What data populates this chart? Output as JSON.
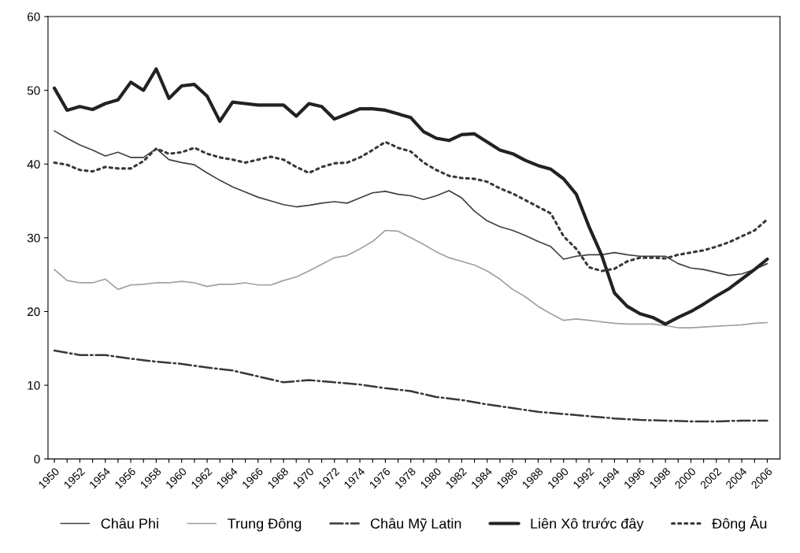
{
  "chart_data": {
    "type": "line",
    "x": [
      1950,
      1951,
      1952,
      1953,
      1954,
      1955,
      1956,
      1957,
      1958,
      1959,
      1960,
      1961,
      1962,
      1963,
      1964,
      1965,
      1966,
      1967,
      1968,
      1969,
      1970,
      1971,
      1972,
      1973,
      1974,
      1975,
      1976,
      1977,
      1978,
      1979,
      1980,
      1981,
      1982,
      1983,
      1984,
      1985,
      1986,
      1987,
      1988,
      1989,
      1990,
      1991,
      1992,
      1993,
      1994,
      1995,
      1996,
      1997,
      1998,
      1999,
      2000,
      2001,
      2002,
      2003,
      2004,
      2005,
      2006
    ],
    "series": [
      {
        "name": "Châu Phi",
        "color": "#404040",
        "line_style": "solid",
        "values": [
          44.5,
          43.5,
          42.6,
          41.9,
          41.1,
          41.6,
          40.9,
          40.9,
          42.1,
          40.6,
          40.2,
          39.9,
          38.8,
          37.8,
          36.9,
          36.2,
          35.5,
          35.0,
          34.5,
          34.2,
          34.4,
          34.7,
          34.9,
          34.7,
          35.4,
          36.1,
          36.3,
          35.9,
          35.7,
          35.2,
          35.7,
          36.4,
          35.4,
          33.6,
          32.3,
          31.5,
          31.0,
          30.3,
          29.5,
          28.8,
          27.1,
          27.5,
          27.7,
          27.7,
          28.0,
          27.7,
          27.5,
          27.5,
          27.5,
          26.5,
          25.9,
          25.7,
          25.3,
          24.9,
          25.1,
          25.7,
          26.5
        ]
      },
      {
        "name": "Trung Đông",
        "color": "#a0a0a0",
        "line_style": "solid",
        "values": [
          25.7,
          24.2,
          23.9,
          23.9,
          24.4,
          23.0,
          23.6,
          23.7,
          23.9,
          23.9,
          24.1,
          23.9,
          23.4,
          23.7,
          23.7,
          23.9,
          23.6,
          23.6,
          24.2,
          24.7,
          25.5,
          26.4,
          27.3,
          27.6,
          28.5,
          29.5,
          31.0,
          30.9,
          30.0,
          29.1,
          28.1,
          27.3,
          26.8,
          26.3,
          25.5,
          24.4,
          23.0,
          22.0,
          20.7,
          19.7,
          18.8,
          19.0,
          18.8,
          18.6,
          18.4,
          18.3,
          18.3,
          18.3,
          18.1,
          17.8,
          17.8,
          17.9,
          18.0,
          18.1,
          18.2,
          18.4,
          18.5
        ]
      },
      {
        "name": "Châu Mỹ Latin",
        "color": "#383838",
        "line_style": "dashdot",
        "x": [
          1950,
          1952,
          1954,
          1956,
          1958,
          1960,
          1962,
          1964,
          1966,
          1968,
          1970,
          1972,
          1974,
          1976,
          1978,
          1980,
          1982,
          1984,
          1986,
          1988,
          1990,
          1992,
          1994,
          1996,
          1998,
          2000,
          2002,
          2004,
          2006
        ],
        "values": [
          14.7,
          14.1,
          14.1,
          13.6,
          13.2,
          12.9,
          12.4,
          12.0,
          11.2,
          10.4,
          10.7,
          10.4,
          10.1,
          9.6,
          9.2,
          8.4,
          8.0,
          7.4,
          6.9,
          6.4,
          6.1,
          5.8,
          5.5,
          5.3,
          5.2,
          5.1,
          5.1,
          5.2,
          5.2
        ]
      },
      {
        "name": "Liên Xô trước đây",
        "color": "#222222",
        "line_style": "solid",
        "values": [
          50.3,
          47.3,
          47.8,
          47.4,
          48.2,
          48.7,
          51.1,
          50.0,
          52.9,
          48.9,
          50.6,
          50.8,
          49.2,
          45.8,
          48.4,
          48.2,
          48.0,
          48.0,
          48.0,
          46.5,
          48.2,
          47.8,
          46.1,
          46.8,
          47.5,
          47.5,
          47.3,
          46.8,
          46.3,
          44.4,
          43.5,
          43.2,
          44.0,
          44.1,
          43.0,
          41.9,
          41.4,
          40.5,
          39.8,
          39.3,
          38.0,
          35.9,
          31.5,
          27.6,
          22.5,
          20.7,
          19.7,
          19.2,
          18.3,
          19.2,
          20.0,
          21.0,
          22.1,
          23.1,
          24.4,
          25.7,
          27.1
        ]
      },
      {
        "name": "Đông Âu",
        "color": "#383838",
        "line_style": "dotted",
        "values": [
          40.2,
          39.9,
          39.2,
          39.0,
          39.6,
          39.4,
          39.4,
          40.4,
          42.1,
          41.4,
          41.6,
          42.2,
          41.4,
          40.9,
          40.6,
          40.2,
          40.6,
          41.0,
          40.6,
          39.6,
          38.8,
          39.6,
          40.1,
          40.2,
          40.9,
          41.9,
          43.0,
          42.2,
          41.7,
          40.2,
          39.2,
          38.4,
          38.1,
          38.0,
          37.6,
          36.7,
          36.0,
          35.1,
          34.2,
          33.3,
          30.2,
          28.5,
          26.0,
          25.5,
          25.8,
          26.8,
          27.3,
          27.3,
          27.2,
          27.7,
          28.0,
          28.3,
          28.8,
          29.4,
          30.2,
          31.0,
          32.5
        ]
      }
    ],
    "xlim": [
      1949.5,
      2007
    ],
    "xticks": [
      1950,
      {
        "value": 1951,
        "label": null
      },
      1952,
      {
        "value": 1953,
        "label": null
      },
      1954,
      {
        "value": 1955,
        "label": null
      },
      1956,
      {
        "value": 1957,
        "label": null
      },
      1958,
      {
        "value": 1959,
        "label": null
      },
      1960,
      {
        "value": 1961,
        "label": null
      },
      1962,
      {
        "value": 1963,
        "label": null
      },
      1964,
      {
        "value": 1965,
        "label": null
      },
      1966,
      {
        "value": 1967,
        "label": null
      },
      1968,
      {
        "value": 1969,
        "label": null
      },
      1970,
      {
        "value": 1971,
        "label": null
      },
      1972,
      {
        "value": 1973,
        "label": null
      },
      1974,
      {
        "value": 1975,
        "label": null
      },
      1976,
      {
        "value": 1977,
        "label": null
      },
      1978,
      {
        "value": 1979,
        "label": null
      },
      1980,
      {
        "value": 1981,
        "label": null
      },
      1982,
      {
        "value": 1983,
        "label": null
      },
      1984,
      {
        "value": 1985,
        "label": null
      },
      1986,
      {
        "value": 1987,
        "label": null
      },
      1988,
      {
        "value": 1989,
        "label": null
      },
      1990,
      {
        "value": 1991,
        "label": null
      },
      1992,
      {
        "value": 1993,
        "label": null
      },
      1994,
      {
        "value": 1995,
        "label": null
      },
      1996,
      {
        "value": 1997,
        "label": null
      },
      1998,
      {
        "value": 1999,
        "label": null
      },
      2000,
      {
        "value": 2001,
        "label": null
      },
      2002,
      {
        "value": 2003,
        "label": null
      },
      2004,
      {
        "value": 2005,
        "label": null
      },
      2006
    ],
    "ylim": [
      0,
      60
    ],
    "yticks": [
      0,
      10,
      20,
      30,
      40,
      50,
      60
    ],
    "grid": false,
    "legend": "bottom",
    "marker": "none"
  }
}
